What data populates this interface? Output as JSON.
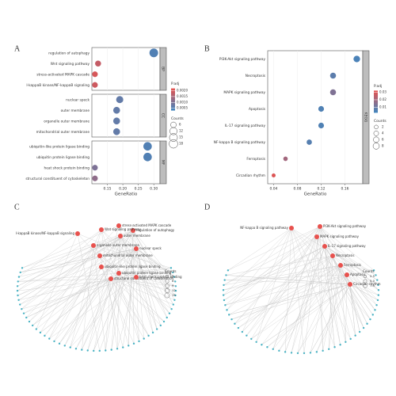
{
  "panels": [
    "A",
    "B",
    "C",
    "D"
  ],
  "chart_data": [
    {
      "type": "dotplot",
      "xlabel": "GeneRatio",
      "xlim": [
        0.1,
        0.32
      ],
      "xticks": [
        0.15,
        {
          "value": 0.2,
          "label": "0.20"
        },
        0.25,
        {
          "value": 0.3,
          "label": "0.30"
        }
      ],
      "facets": [
        {
          "name": "BP",
          "categories": [
            "regulation of autophagy",
            "Wnt signaling pathway",
            "stress-activated MAPK cascade",
            "I-kappaB kinase/NF-kappaB signaling"
          ],
          "values": [
            0.3,
            0.12,
            0.11,
            0.11
          ],
          "counts": [
            18,
            7,
            6,
            6
          ],
          "padj": [
            0.0005,
            0.0018,
            0.002,
            0.0019
          ]
        },
        {
          "name": "CC",
          "categories": [
            "nuclear speck",
            "outer membrane",
            "organelle outer membrane",
            "mitochondrial outer membrane"
          ],
          "values": [
            0.19,
            0.18,
            0.18,
            0.18
          ],
          "counts": [
            11,
            10,
            10,
            10
          ],
          "padj": [
            0.0007,
            0.0007,
            0.0007,
            0.0007
          ]
        },
        {
          "name": "MF",
          "categories": [
            "ubiquitin-like protein ligase binding",
            "ubiquitin protein ligase binding",
            "heat shock protein binding",
            "structural constituent of cytoskeleton"
          ],
          "values": [
            0.28,
            0.28,
            0.11,
            0.11
          ],
          "counts": [
            17,
            17,
            6,
            6
          ],
          "padj": [
            0.0005,
            0.0005,
            0.001,
            0.0012
          ]
        }
      ],
      "color_title": "P.adj",
      "colors": [
        "#3f86c0",
        "#e8514d"
      ],
      "clim": [
        0.0003,
        0.0022
      ],
      "color_ticks": [
        {
          "value": 0.002,
          "label": "0.0020"
        },
        {
          "value": 0.0015,
          "label": "0.0015"
        },
        {
          "value": 0.001,
          "label": "0.0010"
        },
        {
          "value": 0.0005,
          "label": "0.0005"
        }
      ],
      "size_title": "Counts",
      "size_ticks": [
        6,
        12,
        15,
        18
      ]
    },
    {
      "type": "dotplot",
      "xlabel": "GeneRatio",
      "xlim": [
        0.03,
        0.19
      ],
      "xticks": [
        0.04,
        0.08,
        0.12,
        0.16
      ],
      "facets": [
        {
          "name": "KEGG",
          "categories": [
            "PI3K-Akt signaling pathway",
            "Necroptosis",
            "MAPK signaling pathway",
            "Apoptosis",
            "IL-17 signaling pathway",
            "NF-kappa B signaling pathway",
            "Ferroptosis",
            "Circadian rhythm"
          ],
          "values": [
            0.18,
            0.14,
            0.14,
            0.12,
            0.12,
            0.1,
            0.06,
            0.04
          ],
          "counts": [
            9,
            7,
            7,
            6,
            6,
            5,
            3,
            2
          ],
          "padj": [
            0.005,
            0.008,
            0.014,
            0.006,
            0.006,
            0.007,
            0.02,
            0.03
          ]
        }
      ],
      "color_title": "P.adj",
      "colors": [
        "#3f86c0",
        "#e8514d"
      ],
      "clim": [
        0.003,
        0.032
      ],
      "color_ticks": [
        0.03,
        0.02,
        0.01
      ],
      "size_title": "Counts",
      "size_ticks": [
        2,
        4,
        6,
        8
      ]
    }
  ],
  "networks": [
    {
      "hubs": [
        "stress-activated MAPK cascade",
        "regulation of autophagy",
        "I-kappaB kinase/NF-kappaB signaling",
        "Wnt signaling pathway",
        "outer membrane",
        "organelle outer membrane",
        "mitochondrial outer membrane",
        "nuclear speck",
        "ubiquitin-like protein ligase binding",
        "ubiquitin protein ligase binding",
        "structural constituent of cytoskeleton",
        "heat shock protein binding"
      ],
      "legend_title": "Counts",
      "legend_ticks": [
        3,
        6,
        9,
        12,
        15
      ]
    },
    {
      "hubs": [
        "NF-kappa B signaling pathway",
        "PI3K-Akt signaling pathway",
        "MAPK signaling pathway",
        "IL-17 signaling pathway",
        "Necroptosis",
        "Ferroptosis",
        "Apoptosis",
        "Circadian rhythm"
      ],
      "legend_title": "Counts",
      "legend_ticks": [
        {
          "value": 2.5,
          "label": "2.5"
        },
        {
          "value": 5,
          "label": "5.0"
        },
        {
          "value": 7.5,
          "label": "7.5"
        }
      ]
    }
  ]
}
